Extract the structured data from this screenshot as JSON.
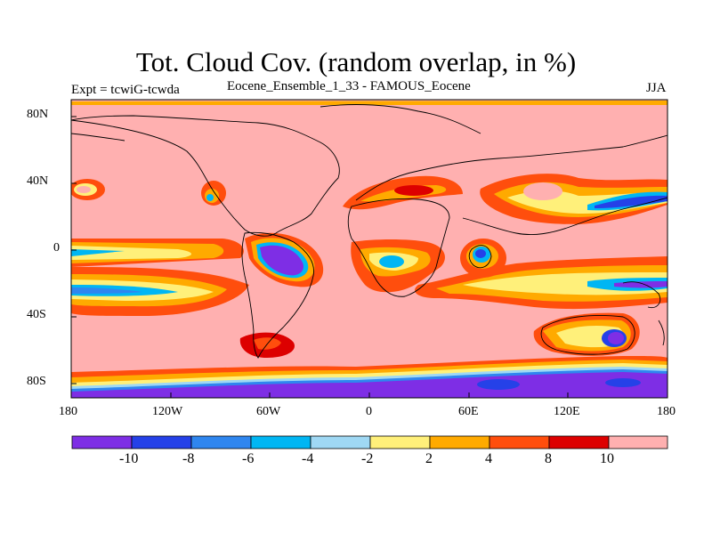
{
  "title": "Tot. Cloud Cov. (random overlap, in %)",
  "expt_label": "Expt = tcwiG-tcwda",
  "subtitle": "Eocene_Ensemble_1_33 - FAMOUS_Eocene",
  "season": "JJA",
  "y_ticks": [
    "80N",
    "40N",
    "0",
    "40S",
    "80S"
  ],
  "x_ticks": [
    "180",
    "120W",
    "60W",
    "0",
    "60E",
    "120E",
    "180"
  ],
  "colorbar": {
    "colors": [
      "#7e2ee5",
      "#2541e8",
      "#2f86ef",
      "#00b6f3",
      "#9fd8f4",
      "#fff07a",
      "#ffaa00",
      "#ff4e0d",
      "#dd0000",
      "#ffb0b0"
    ],
    "labels": [
      "-10",
      "-8",
      "-6",
      "-4",
      "-2",
      "2",
      "4",
      "8",
      "10"
    ]
  },
  "field": {
    "background": "#ffb0b0",
    "coastline_color": "#000000"
  }
}
